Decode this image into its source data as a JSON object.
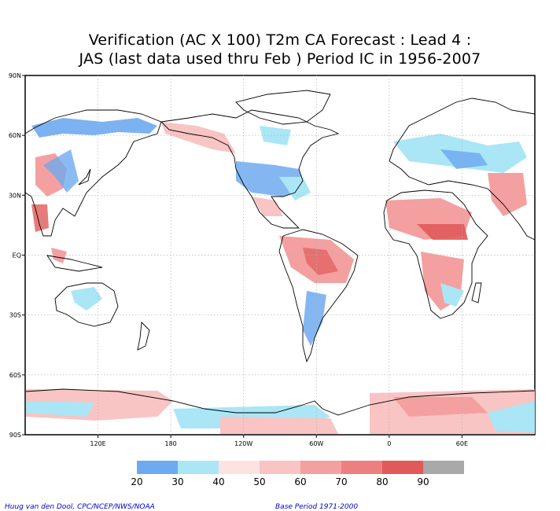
{
  "title_line1": "Verification (AC X 100) T2m CA Forecast : Lead 4 :",
  "title_line2": "JAS (last data used thru Feb ) Period IC in 1956-2007",
  "lat_labels": [
    {
      "text": "90N",
      "lat": 90
    },
    {
      "text": "60N",
      "lat": 60
    },
    {
      "text": "30N",
      "lat": 30
    },
    {
      "text": "EQ",
      "lat": 0
    },
    {
      "text": "30S",
      "lat": -30
    },
    {
      "text": "60S",
      "lat": -60
    },
    {
      "text": "90S",
      "lat": -90
    }
  ],
  "lon_labels": [
    {
      "text": "120E",
      "lon": 120
    },
    {
      "text": "180",
      "lon": 180
    },
    {
      "text": "120W",
      "lon": 240
    },
    {
      "text": "60W",
      "lon": 300
    },
    {
      "text": "0",
      "lon": 360
    },
    {
      "text": "60E",
      "lon": 420
    }
  ],
  "colorbar": {
    "boxes": [
      {
        "color": "#6eaaf0"
      },
      {
        "color": "#aae6f5"
      },
      {
        "color": "#fde2e2"
      },
      {
        "color": "#f9c4c4"
      },
      {
        "color": "#f4a0a0"
      },
      {
        "color": "#ec8080"
      },
      {
        "color": "#e05a5a"
      },
      {
        "color": "#a9a9a9"
      }
    ],
    "labels": [
      "20",
      "30",
      "40",
      "50",
      "60",
      "70",
      "80",
      "90"
    ]
  },
  "credit_left": "Huug van den Dool, CPC/NCEP/NWS/NOAA",
  "credit_right": "Base Period 1971-2000"
}
